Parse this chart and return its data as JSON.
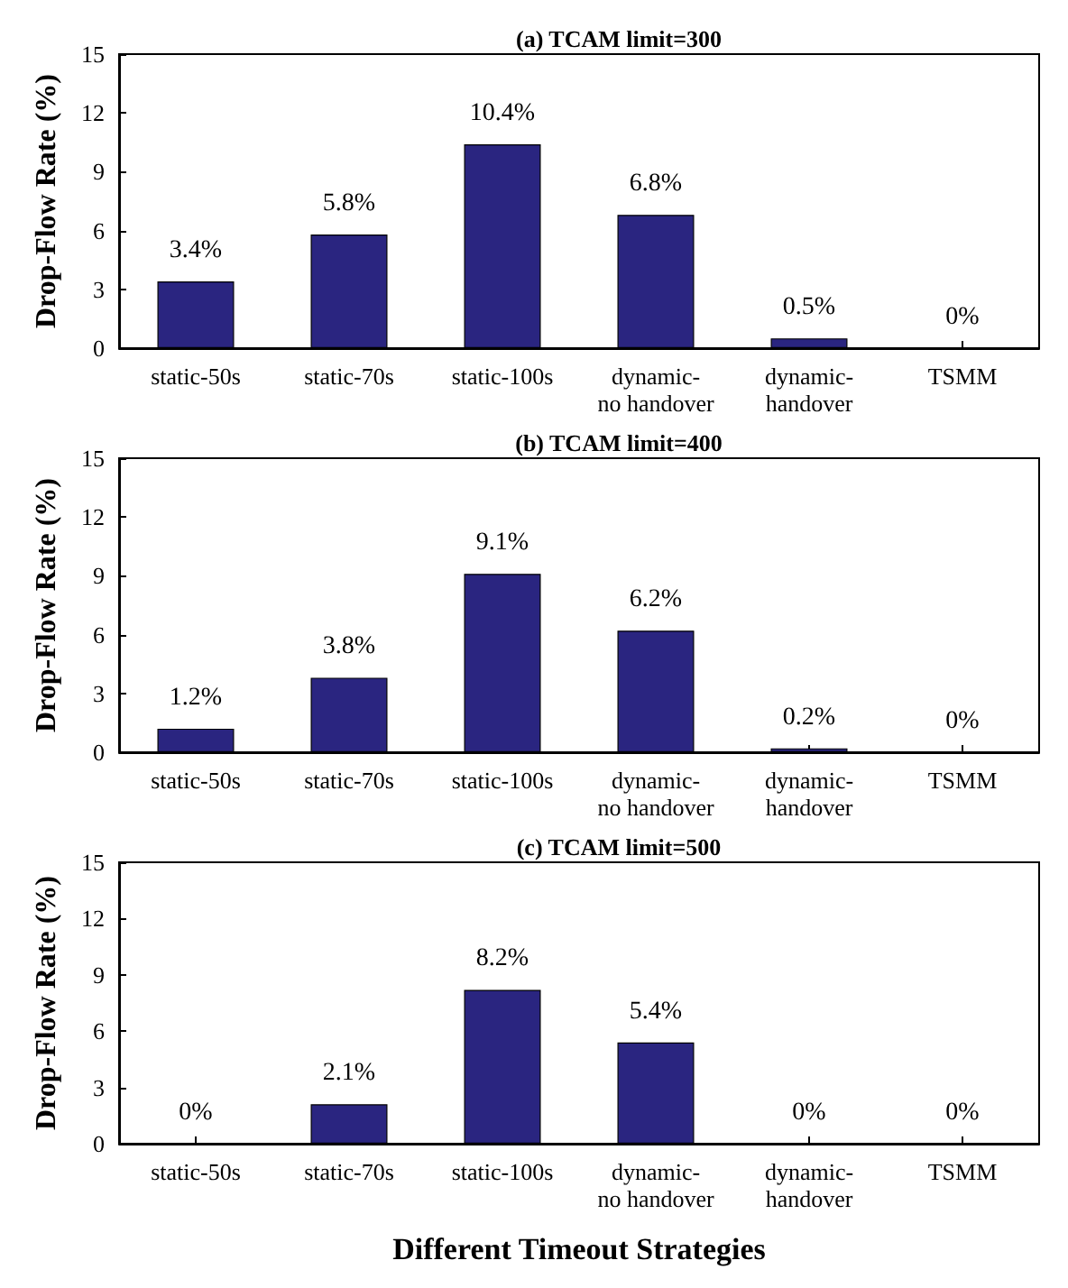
{
  "chart_data": [
    {
      "type": "bar",
      "title": "(a) TCAM limit=300",
      "ylabel": "Drop-Flow Rate (%)",
      "categories": [
        "static-50s",
        "static-70s",
        "static-100s",
        "dynamic-\nno handover",
        "dynamic-\nhandover",
        "TSMM"
      ],
      "values": [
        3.4,
        5.8,
        10.4,
        6.8,
        0.5,
        0
      ],
      "value_labels": [
        "3.4%",
        "5.8%",
        "10.4%",
        "6.8%",
        "0.5%",
        "0%"
      ],
      "color": "#2a2580",
      "ylim": [
        0,
        15
      ],
      "yticks": [
        0,
        3,
        6,
        9,
        12,
        15
      ],
      "grid": false
    },
    {
      "type": "bar",
      "title": "(b) TCAM limit=400",
      "ylabel": "Drop-Flow Rate (%)",
      "categories": [
        "static-50s",
        "static-70s",
        "static-100s",
        "dynamic-\nno handover",
        "dynamic-\nhandover",
        "TSMM"
      ],
      "values": [
        1.2,
        3.8,
        9.1,
        6.2,
        0.2,
        0
      ],
      "value_labels": [
        "1.2%",
        "3.8%",
        "9.1%",
        "6.2%",
        "0.2%",
        "0%"
      ],
      "color": "#2a2580",
      "ylim": [
        0,
        15
      ],
      "yticks": [
        0,
        3,
        6,
        9,
        12,
        15
      ],
      "grid": false
    },
    {
      "type": "bar",
      "title": "(c) TCAM limit=500",
      "xlabel": "Different Timeout Strategies",
      "ylabel": "Drop-Flow Rate (%)",
      "categories": [
        "static-50s",
        "static-70s",
        "static-100s",
        "dynamic-\nno handover",
        "dynamic-\nhandover",
        "TSMM"
      ],
      "values": [
        0,
        2.1,
        8.2,
        5.4,
        0,
        0
      ],
      "value_labels": [
        "0%",
        "2.1%",
        "8.2%",
        "5.4%",
        "0%",
        "0%"
      ],
      "color": "#2a2580",
      "ylim": [
        0,
        15
      ],
      "yticks": [
        0,
        3,
        6,
        9,
        12,
        15
      ],
      "grid": false
    }
  ]
}
